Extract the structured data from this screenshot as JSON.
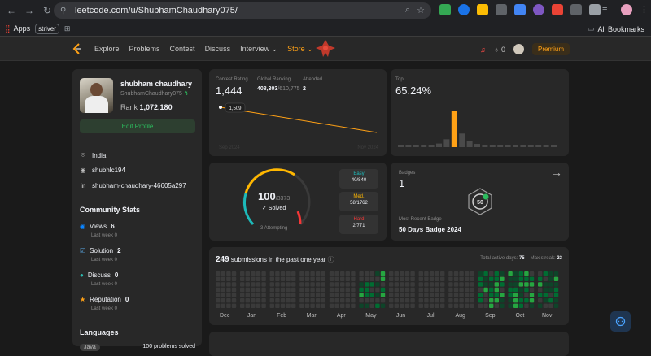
{
  "browser": {
    "url": "leetcode.com/u/ShubhamChaudhary075/",
    "bookmarks": {
      "apps": "Apps",
      "chip": "striver",
      "all": "All Bookmarks"
    }
  },
  "nav": {
    "links": [
      "Explore",
      "Problems",
      "Contest",
      "Discuss",
      "Interview ⌄"
    ],
    "store": "Store ⌄",
    "notif_count": "0",
    "premium": "Premium"
  },
  "profile": {
    "name": "shubham chaudhary",
    "username": "ShubhamChaudhary075",
    "rank_label": "Rank",
    "rank": "1,072,180",
    "edit_button": "Edit Profile",
    "location": "India",
    "github": "shubhlc194",
    "linkedin": "shubham-chaudhary-46605a297"
  },
  "community": {
    "title": "Community Stats",
    "items": [
      {
        "label": "Views",
        "value": "6",
        "sub": "Last week 0",
        "color": "#0a84ff"
      },
      {
        "label": "Solution",
        "value": "2",
        "sub": "Last week 0",
        "color": "#5aa9e6"
      },
      {
        "label": "Discuss",
        "value": "0",
        "sub": "Last week 0",
        "color": "#2cbbb0"
      },
      {
        "label": "Reputation",
        "value": "0",
        "sub": "Last week 0",
        "color": "#ffa116"
      }
    ]
  },
  "languages": {
    "title": "Languages",
    "lang": "Java",
    "solved": "100 problems solved"
  },
  "contest": {
    "rating_label": "Contest Rating",
    "rating": "1,444",
    "global_label": "Global Ranking",
    "global": "408,303",
    "global_total": "/610,775",
    "attended_label": "Attended",
    "attended": "2",
    "point_label": "1,509",
    "x_start": "Sep 2024",
    "x_end": "Nov 2024",
    "line_color": "#ffa116"
  },
  "top": {
    "label": "Top",
    "value": "65.24%",
    "bars": [
      0.03,
      0.03,
      0.03,
      0.03,
      0.05,
      0.1,
      0.22,
      1.0,
      0.38,
      0.18,
      0.09,
      0.05,
      0.04,
      0.03,
      0.03,
      0.03,
      0.03,
      0.03,
      0.03,
      0.03,
      0.03
    ]
  },
  "solved": {
    "count": "100",
    "total": "/3373",
    "label": "✓ Solved",
    "attempting": "3 Attempting",
    "easy_label": "Easy",
    "easy": "40/840",
    "med_label": "Med.",
    "med": "58/1762",
    "hard_label": "Hard",
    "hard": "2/771"
  },
  "badges": {
    "label": "Badges",
    "count": "1",
    "recent_label": "Most Recent Badge",
    "recent": "50 Days Badge 2024",
    "badge_text": "50"
  },
  "submissions": {
    "count": "249",
    "text": "submissions in the past one year",
    "active_label": "Total active days:",
    "active": "75",
    "streak_label": "Max streak:",
    "streak": "23",
    "months": [
      "Dec",
      "Jan",
      "Feb",
      "Mar",
      "Apr",
      "May",
      "Jun",
      "Jul",
      "Aug",
      "Sep",
      "Oct",
      "Nov"
    ]
  }
}
